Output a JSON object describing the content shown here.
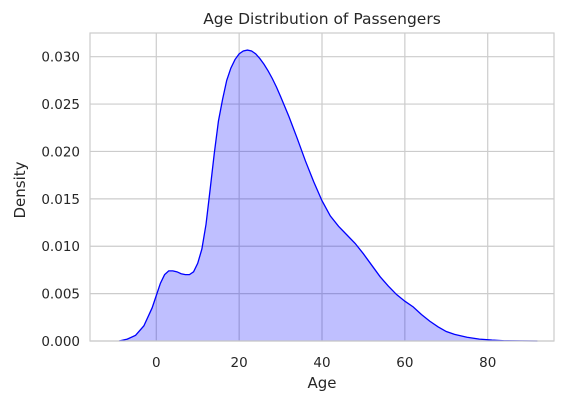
{
  "chart_data": {
    "type": "area",
    "title": "Age Distribution of Passengers",
    "xlabel": "Age",
    "ylabel": "Density",
    "xlim": [
      -16,
      96
    ],
    "ylim": [
      0,
      0.0325
    ],
    "xticks": [
      0,
      20,
      40,
      60,
      80
    ],
    "yticks": [
      0.0,
      0.005,
      0.01,
      0.015,
      0.02,
      0.025,
      0.03
    ],
    "ytick_format_decimals": 3,
    "grid": true,
    "series": [
      {
        "line_color": "#0000ff",
        "fill_color": "#0000ff",
        "fill_opacity": 0.25,
        "x": [
          -9,
          -7,
          -5,
          -3,
          -1,
          0,
          1,
          2,
          3,
          4,
          5,
          6,
          7,
          8,
          9,
          10,
          11,
          12,
          13,
          14,
          15,
          16,
          17,
          18,
          19,
          20,
          21,
          22,
          23,
          24,
          25,
          26,
          27,
          28,
          29,
          30,
          32,
          34,
          36,
          38,
          40,
          42,
          44,
          46,
          48,
          50,
          52,
          54,
          56,
          58,
          60,
          62,
          64,
          66,
          68,
          70,
          72,
          75,
          78,
          81,
          84,
          88,
          92
        ],
        "y": [
          0.0,
          0.0002,
          0.0006,
          0.0016,
          0.0035,
          0.0048,
          0.0061,
          0.007,
          0.0074,
          0.0074,
          0.0073,
          0.0071,
          0.007,
          0.007,
          0.0073,
          0.0082,
          0.0097,
          0.0123,
          0.016,
          0.0198,
          0.0232,
          0.0255,
          0.0275,
          0.0288,
          0.0297,
          0.0303,
          0.0306,
          0.0307,
          0.0306,
          0.0303,
          0.0298,
          0.0292,
          0.0285,
          0.0277,
          0.0268,
          0.0258,
          0.0237,
          0.0214,
          0.019,
          0.0168,
          0.0148,
          0.0132,
          0.0121,
          0.0112,
          0.0103,
          0.0092,
          0.008,
          0.0068,
          0.0058,
          0.0049,
          0.0042,
          0.0036,
          0.0028,
          0.0021,
          0.0015,
          0.001,
          0.0007,
          0.0004,
          0.0002,
          0.0001,
          3e-05,
          1e-05,
          0.0
        ]
      }
    ]
  }
}
